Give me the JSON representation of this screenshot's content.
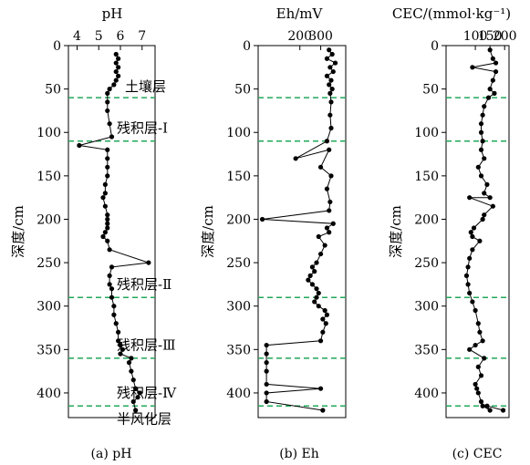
{
  "chart_data": [
    {
      "type": "line",
      "title": "pH",
      "caption": "(a) pH",
      "ylabel": "深度/cm",
      "x_ticks": [
        4,
        5,
        6,
        7
      ],
      "xlim": [
        3.6,
        7.6
      ],
      "ylim": [
        0,
        420
      ],
      "y_ticks": [
        0,
        50,
        100,
        150,
        200,
        250,
        300,
        350,
        400
      ],
      "y_tick_labels": [
        "0",
        "50",
        "100",
        "150",
        "200",
        "250",
        "300",
        "350",
        "400"
      ],
      "boundaries": [
        60,
        110,
        290,
        360,
        415
      ],
      "layer_labels": [
        {
          "text": "土壤层",
          "depth": 47
        },
        {
          "text": "残积层-Ⅰ",
          "depth": 95
        },
        {
          "text": "残积层-Ⅱ",
          "depth": 275
        },
        {
          "text": "残积层-Ⅲ",
          "depth": 345
        },
        {
          "text": "残积层-Ⅳ",
          "depth": 400
        },
        {
          "text": "半风化层",
          "depth": 430
        }
      ],
      "series": [
        {
          "x": [
            5.8,
            5.9,
            5.8,
            5.9,
            5.8,
            5.9,
            5.8,
            5.7,
            5.5,
            5.4,
            5.4,
            5.4,
            5.5,
            5.6,
            4.1,
            5.4,
            5.4,
            5.4,
            5.4,
            5.3,
            5.3,
            5.2,
            5.3,
            5.4,
            5.4,
            5.4,
            5.4,
            5.3,
            5.2,
            5.4,
            5.5,
            7.3,
            5.6,
            5.5,
            5.5,
            5.6,
            5.6,
            5.7,
            5.7,
            5.8,
            5.9,
            5.9,
            6.0,
            6.1,
            6.0,
            6.5,
            6.4,
            6.5,
            6.6,
            6.7,
            6.9,
            6.8,
            6.6,
            6.7
          ],
          "y": [
            10,
            15,
            20,
            25,
            30,
            35,
            40,
            45,
            50,
            55,
            65,
            75,
            90,
            105,
            115,
            120,
            130,
            140,
            150,
            160,
            170,
            175,
            185,
            195,
            200,
            205,
            210,
            215,
            220,
            225,
            235,
            250,
            255,
            265,
            275,
            280,
            290,
            300,
            310,
            320,
            330,
            340,
            345,
            350,
            355,
            360,
            365,
            375,
            385,
            395,
            400,
            405,
            410,
            420
          ]
        }
      ]
    },
    {
      "type": "line",
      "title": "Eh/mV",
      "caption": "(b) Eh",
      "ylabel": "深度/cm",
      "x_ticks": [
        200,
        300
      ],
      "xlim": [
        0,
        420
      ],
      "ylim": [
        0,
        420
      ],
      "y_ticks": [
        0,
        50,
        100,
        150,
        200,
        250,
        300,
        350,
        400
      ],
      "y_tick_labels": [
        "0",
        "50",
        "100",
        "150",
        "200",
        "250",
        "300",
        "350",
        "400"
      ],
      "boundaries": [
        60,
        110,
        290,
        360,
        415
      ],
      "series": [
        {
          "x": [
            340,
            355,
            330,
            370,
            345,
            360,
            330,
            350,
            340,
            355,
            345,
            350,
            345,
            350,
            330,
            180,
            340,
            300,
            350,
            330,
            345,
            340,
            20,
            360,
            330,
            340,
            290,
            320,
            300,
            280,
            260,
            270,
            250,
            240,
            260,
            280,
            290,
            280,
            270,
            290,
            320,
            330,
            310,
            325,
            310,
            300,
            40,
            40,
            40,
            40,
            40,
            300,
            40,
            40,
            310
          ],
          "y": [
            5,
            10,
            15,
            20,
            25,
            30,
            35,
            40,
            45,
            50,
            55,
            65,
            80,
            95,
            110,
            130,
            120,
            140,
            150,
            165,
            180,
            190,
            200,
            205,
            210,
            215,
            220,
            230,
            240,
            250,
            255,
            260,
            265,
            270,
            275,
            280,
            285,
            290,
            295,
            300,
            305,
            310,
            315,
            320,
            330,
            340,
            345,
            355,
            365,
            375,
            390,
            395,
            400,
            410,
            420
          ]
        }
      ]
    },
    {
      "type": "line",
      "title": "CEC/(mmol·kg⁻¹)",
      "caption": "(c) CEC",
      "ylabel": "深度/cm",
      "x_ticks": [
        100,
        150,
        200
      ],
      "xlim": [
        0,
        215
      ],
      "ylim": [
        0,
        420
      ],
      "y_ticks": [
        0,
        50,
        100,
        150,
        200,
        250,
        300,
        350,
        400
      ],
      "y_tick_labels": [
        "0",
        "50",
        "100",
        "150",
        "200",
        "250",
        "300",
        "350",
        "400"
      ],
      "boundaries": [
        60,
        110,
        290,
        360,
        415
      ],
      "series": [
        {
          "x": [
            150,
            160,
            170,
            90,
            170,
            160,
            150,
            165,
            145,
            130,
            125,
            120,
            120,
            125,
            120,
            130,
            110,
            120,
            140,
            130,
            150,
            80,
            160,
            130,
            125,
            95,
            85,
            90,
            115,
            90,
            80,
            75,
            70,
            75,
            80,
            90,
            100,
            110,
            115,
            125,
            100,
            80,
            130,
            110,
            120,
            100,
            105,
            110,
            120,
            125,
            150,
            140,
            195
          ],
          "y": [
            5,
            15,
            20,
            25,
            30,
            40,
            50,
            55,
            60,
            70,
            80,
            90,
            100,
            110,
            120,
            130,
            140,
            150,
            160,
            170,
            175,
            175,
            185,
            195,
            200,
            210,
            215,
            220,
            225,
            235,
            245,
            255,
            265,
            275,
            285,
            295,
            305,
            320,
            330,
            340,
            345,
            350,
            360,
            370,
            380,
            390,
            395,
            400,
            410,
            415,
            420,
            415,
            420
          ]
        }
      ]
    }
  ]
}
